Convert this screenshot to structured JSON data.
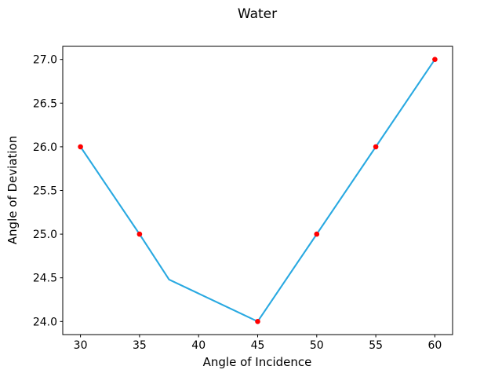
{
  "figure": {
    "background": "#ffffff",
    "text_color": "#000000",
    "spine_color": "#000000"
  },
  "chart_data": {
    "type": "line",
    "title": "Water",
    "xlabel": "Angle of Incidence",
    "ylabel": "Angle of Deviation",
    "xlim": [
      28.5,
      61.5
    ],
    "ylim": [
      23.85,
      27.15
    ],
    "grid": false,
    "legend": false,
    "xticks": {
      "values": [
        30,
        35,
        40,
        45,
        50,
        55,
        60
      ],
      "labels": [
        "30",
        "35",
        "40",
        "45",
        "50",
        "55",
        "60"
      ]
    },
    "yticks": {
      "values": [
        24.0,
        24.5,
        25.0,
        25.5,
        26.0,
        26.5,
        27.0
      ],
      "labels": [
        "24.0",
        "24.5",
        "25.0",
        "25.5",
        "26.0",
        "26.5",
        "27.0"
      ]
    },
    "series": [
      {
        "name": "deviation-line",
        "type": "line",
        "color": "#29a9e1",
        "line_width": 2.1,
        "points": [
          [
            30,
            26
          ],
          [
            35,
            25
          ],
          [
            37.5,
            24.48
          ],
          [
            45,
            24
          ],
          [
            50,
            25
          ],
          [
            55,
            26
          ],
          [
            60,
            27
          ]
        ]
      },
      {
        "name": "measured-points",
        "type": "scatter",
        "color": "#ff0000",
        "marker_radius": 3.3,
        "points": [
          [
            30,
            26
          ],
          [
            35,
            25
          ],
          [
            45,
            24
          ],
          [
            50,
            25
          ],
          [
            55,
            26
          ],
          [
            60,
            27
          ]
        ]
      }
    ]
  }
}
